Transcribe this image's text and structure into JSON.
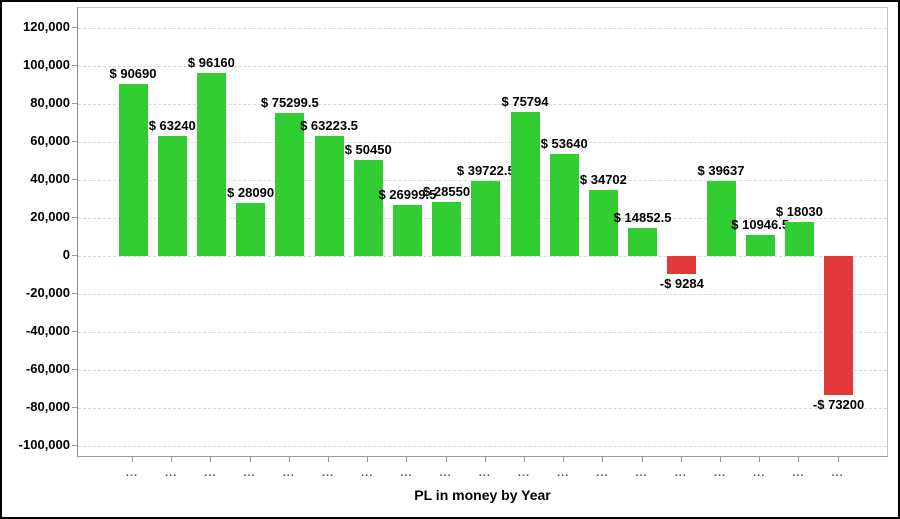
{
  "chart_data": {
    "type": "bar",
    "title": "",
    "xlabel": "PL in money by Year",
    "ylabel": "",
    "grid": true,
    "legend": false,
    "ylim": [
      -106000,
      131000
    ],
    "y_tick_values": [
      120000,
      100000,
      80000,
      60000,
      40000,
      20000,
      0,
      -20000,
      -40000,
      -60000,
      -80000,
      -100000
    ],
    "y_tick_labels": [
      "120,000",
      "100,000",
      "80,000",
      "60,000",
      "40,000",
      "20,000",
      "0",
      "-20,000",
      "-40,000",
      "-60,000",
      "-80,000",
      "-100,000"
    ],
    "categories": [
      "...",
      "...",
      "...",
      "...",
      "...",
      "...",
      "...",
      "...",
      "...",
      "...",
      "...",
      "...",
      "...",
      "...",
      "...",
      "...",
      "...",
      "...",
      "..."
    ],
    "values": [
      90690,
      63240,
      96160,
      28090,
      75299.5,
      63223.5,
      50450,
      26999.5,
      28550,
      39722.5,
      75794,
      53640,
      34702,
      14852.5,
      -9284,
      39637,
      10946.5,
      18030,
      -73200
    ],
    "bar_labels": [
      "$ 90690",
      "$ 63240",
      "$ 96160",
      "$ 28090",
      "$ 75299.5",
      "$ 63223.5",
      "$ 50450",
      "$ 26999.5",
      "$ 28550",
      "$ 39722.5",
      "$ 75794",
      "$ 53640",
      "$ 34702",
      "$ 14852.5",
      "-$ 9284",
      "$ 39637",
      "$ 10946.5",
      "$ 18030",
      "-$ 73200"
    ],
    "colors": {
      "positive_bar": "#32CD32",
      "negative_bar": "#E23A3A",
      "gridline": "#d9d9d9",
      "tick": "#999999"
    }
  }
}
